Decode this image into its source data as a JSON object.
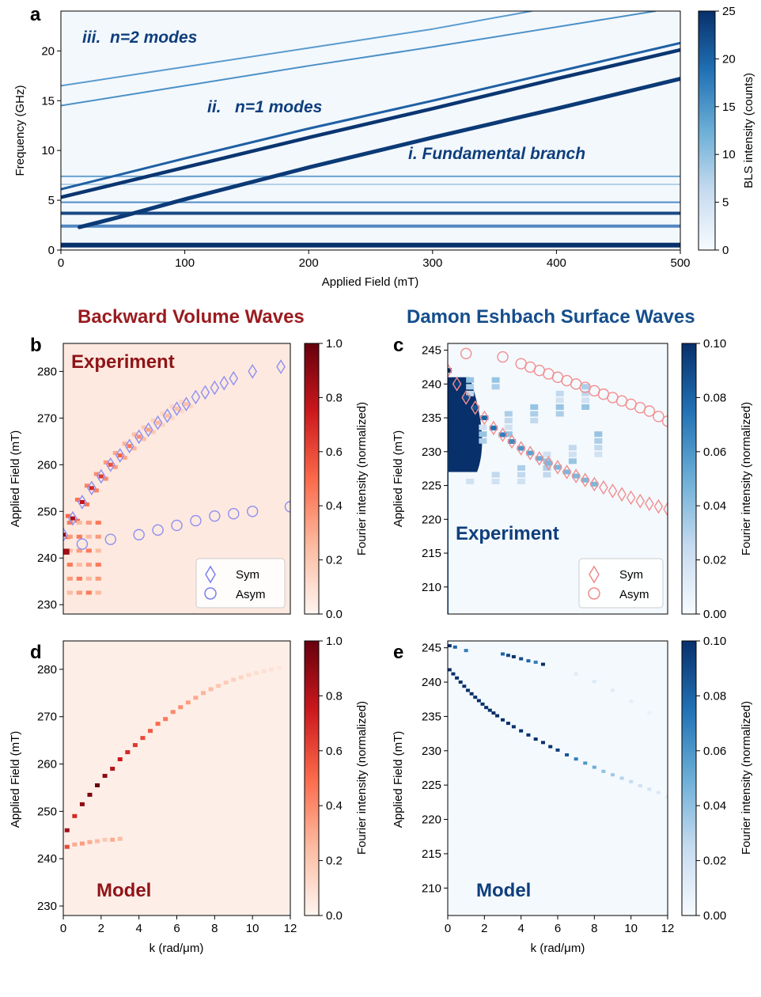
{
  "sections": {
    "left_title": "Backward Volume Waves",
    "right_title": "Damon Eshbach Surface Waves"
  },
  "chart_data": [
    {
      "id": "a",
      "type": "heatmap",
      "panel_letter": "a",
      "xlabel": "Applied Field (mT)",
      "ylabel": "Frequency (GHz)",
      "xlim": [
        0,
        500
      ],
      "ylim": [
        0,
        24
      ],
      "xticks": [
        "0",
        "100",
        "200",
        "300",
        "400",
        "500"
      ],
      "yticks": [
        "0",
        "5",
        "10",
        "15",
        "20"
      ],
      "colorbar": {
        "label": "BLS intensity (counts)",
        "range": [
          0,
          25
        ],
        "ticks": [
          "0",
          "5",
          "10",
          "15",
          "20",
          "25"
        ],
        "colormap": "Blues"
      },
      "annotations": [
        "iii.  n=2 modes",
        "ii.   n=1 modes",
        "i. Fundamental branch"
      ],
      "branches": [
        {
          "name": "fundamental",
          "points": [
            [
              15,
              2.3
            ],
            [
              50,
              3.4
            ],
            [
              100,
              5.1
            ],
            [
              200,
              8.3
            ],
            [
              300,
              11.3
            ],
            [
              400,
              14.2
            ],
            [
              500,
              17.2
            ]
          ]
        },
        {
          "name": "n=1 lower",
          "points": [
            [
              0,
              5.3
            ],
            [
              100,
              8.3
            ],
            [
              200,
              11.3
            ],
            [
              300,
              14.2
            ],
            [
              400,
              17.2
            ],
            [
              500,
              20.1
            ]
          ]
        },
        {
          "name": "n=1 upper",
          "points": [
            [
              0,
              6.1
            ],
            [
              100,
              9.2
            ],
            [
              200,
              12.2
            ],
            [
              300,
              15.0
            ],
            [
              400,
              17.9
            ],
            [
              500,
              20.8
            ]
          ]
        },
        {
          "name": "n=2 lower",
          "points": [
            [
              0,
              14.5
            ],
            [
              100,
              16.5
            ],
            [
              200,
              18.5
            ],
            [
              300,
              20.4
            ],
            [
              380,
              22.0
            ],
            [
              480,
              24.0
            ]
          ]
        },
        {
          "name": "n=2 upper",
          "points": [
            [
              0,
              16.5
            ],
            [
              100,
              18.4
            ],
            [
              200,
              20.3
            ],
            [
              300,
              22.2
            ],
            [
              380,
              24.0
            ]
          ]
        }
      ],
      "horizontal_bands_GHz": [
        0.5,
        2.4,
        3.7,
        4.8,
        6.6,
        7.4
      ]
    },
    {
      "id": "b",
      "type": "heatmap",
      "panel_letter": "b",
      "inset_label": "Experiment",
      "ylabel": "Applied Field (mT)",
      "xlim": [
        0,
        12
      ],
      "ylim": [
        228,
        286
      ],
      "yticks": [
        "230",
        "240",
        "250",
        "260",
        "270",
        "280"
      ],
      "colorbar": {
        "label": "Fourier intensity (normalized)",
        "range": [
          0,
          1
        ],
        "ticks": [
          "0.0",
          "0.2",
          "0.4",
          "0.6",
          "0.8",
          "1.0"
        ],
        "colormap": "Reds"
      },
      "legend": [
        "Sym",
        "Asym"
      ],
      "sym_points": {
        "k": [
          0,
          0.5,
          1,
          1.5,
          2,
          2.5,
          3,
          3.5,
          4,
          4.5,
          5,
          5.5,
          6,
          6.5,
          7,
          7.5,
          8,
          8.5,
          9,
          10,
          11.5
        ],
        "field": [
          245,
          248.5,
          252,
          255,
          257.5,
          260,
          262,
          264,
          266,
          267.5,
          269,
          270.5,
          272,
          273,
          274.5,
          275.5,
          276.5,
          277.5,
          278.5,
          280,
          281
        ]
      },
      "asym_points": {
        "k": [
          1,
          2.5,
          4,
          5,
          6,
          7,
          8,
          9,
          10,
          12
        ],
        "field": [
          243,
          244,
          245,
          246,
          247,
          248,
          249,
          249.5,
          250,
          251
        ]
      }
    },
    {
      "id": "c",
      "type": "heatmap",
      "panel_letter": "c",
      "inset_label": "Experiment",
      "ylabel": "Applied Field (mT)",
      "xlim": [
        0,
        12
      ],
      "ylim": [
        206,
        246
      ],
      "yticks": [
        "210",
        "215",
        "220",
        "225",
        "230",
        "235",
        "240",
        "245"
      ],
      "colorbar": {
        "label": "Fourier intensity (normalized)",
        "range": [
          0,
          0.1
        ],
        "ticks": [
          "0.00",
          "0.02",
          "0.04",
          "0.06",
          "0.08",
          "0.10"
        ],
        "colormap": "Blues"
      },
      "legend": [
        "Sym",
        "Asym"
      ],
      "sym_points": {
        "k": [
          0,
          0.5,
          1,
          1.5,
          2,
          2.5,
          3,
          3.5,
          4,
          4.5,
          5,
          5.5,
          6,
          6.5,
          7,
          7.5,
          8,
          8.5,
          9,
          9.5,
          10,
          10.5,
          11,
          11.5,
          12
        ],
        "field": [
          242,
          240,
          238,
          236.5,
          235,
          233.5,
          232.5,
          231.5,
          230.5,
          229.8,
          229,
          228.3,
          227.7,
          227,
          226.4,
          225.8,
          225.2,
          224.7,
          224.2,
          223.7,
          223.2,
          222.7,
          222.3,
          221.9,
          221.5
        ]
      },
      "asym_points": {
        "k": [
          1,
          3,
          4,
          4.5,
          5,
          5.5,
          6,
          6.5,
          7,
          7.5,
          8,
          8.5,
          9,
          9.5,
          10,
          10.5,
          11,
          11.5,
          12
        ],
        "field": [
          244.5,
          244,
          243,
          242.5,
          242,
          241.5,
          241,
          240.5,
          240,
          239.5,
          239,
          238.5,
          238,
          237.5,
          237,
          236.5,
          236,
          235.2,
          234.5
        ]
      }
    },
    {
      "id": "d",
      "type": "heatmap",
      "panel_letter": "d",
      "inset_label": "Model",
      "xlabel": "k (rad/μm)",
      "ylabel": "Applied Field (mT)",
      "xlim": [
        0,
        12
      ],
      "ylim": [
        228,
        286
      ],
      "xticks": [
        "0",
        "2",
        "4",
        "6",
        "8",
        "10",
        "12"
      ],
      "yticks": [
        "230",
        "240",
        "250",
        "260",
        "270",
        "280"
      ],
      "colorbar": {
        "label": "Fourier intensity (normalized)",
        "range": [
          0,
          1
        ],
        "ticks": [
          "0.0",
          "0.2",
          "0.4",
          "0.6",
          "0.8",
          "1.0"
        ],
        "colormap": "Reds"
      },
      "main_branch": {
        "k": [
          0.2,
          0.6,
          1,
          1.4,
          1.8,
          2.2,
          2.6,
          3,
          3.4,
          3.8,
          4.2,
          4.6,
          5,
          5.4,
          5.8,
          6.2,
          6.6,
          7,
          7.4,
          7.8,
          8.2,
          8.6,
          9,
          9.4,
          9.8,
          10.2,
          10.6,
          11,
          11.4
        ],
        "field": [
          246,
          249,
          251.5,
          253.5,
          255.5,
          257.5,
          259,
          261,
          262.5,
          264,
          265.5,
          267,
          268.5,
          269.5,
          271,
          272,
          273,
          274,
          275,
          275.8,
          276.5,
          277.2,
          277.8,
          278.3,
          278.8,
          279.2,
          279.6,
          280,
          280.3
        ],
        "intensity": [
          0.85,
          0.7,
          0.9,
          0.95,
          1.0,
          0.9,
          0.8,
          0.75,
          0.7,
          0.65,
          0.6,
          0.55,
          0.5,
          0.45,
          0.4,
          0.38,
          0.34,
          0.3,
          0.27,
          0.24,
          0.2,
          0.18,
          0.16,
          0.14,
          0.12,
          0.1,
          0.09,
          0.08,
          0.07
        ]
      },
      "lower_branch": {
        "k": [
          0.2,
          0.6,
          1.0,
          1.4,
          1.8,
          2.2,
          2.6,
          3.0
        ],
        "field": [
          242.5,
          243,
          243.2,
          243.5,
          243.7,
          244,
          244,
          244.2
        ],
        "intensity": [
          0.6,
          0.3,
          0.35,
          0.3,
          0.25,
          0.2,
          0.3,
          0.25
        ]
      }
    },
    {
      "id": "e",
      "type": "heatmap",
      "panel_letter": "e",
      "inset_label": "Model",
      "xlabel": "k (rad/μm)",
      "ylabel": "Applied Field (mT)",
      "xlim": [
        0,
        12
      ],
      "ylim": [
        206,
        246
      ],
      "xticks": [
        "0",
        "2",
        "4",
        "6",
        "8",
        "10",
        "12"
      ],
      "yticks": [
        "210",
        "215",
        "220",
        "225",
        "230",
        "235",
        "240",
        "245"
      ],
      "colorbar": {
        "label": "Fourier intensity (normalized)",
        "range": [
          0,
          0.1
        ],
        "ticks": [
          "0.00",
          "0.02",
          "0.04",
          "0.06",
          "0.08",
          "0.10"
        ],
        "colormap": "Blues"
      },
      "main_branch": {
        "k": [
          0.1,
          0.3,
          0.5,
          0.7,
          0.9,
          1.1,
          1.3,
          1.5,
          1.7,
          1.9,
          2.1,
          2.3,
          2.5,
          2.7,
          3.0,
          3.3,
          3.6,
          4.0,
          4.4,
          4.8,
          5.2,
          5.6,
          6.0,
          6.5,
          7.0,
          7.5,
          8.0,
          8.5,
          9.0,
          9.5,
          10.0,
          10.5,
          11.0,
          11.5,
          12.0
        ],
        "field": [
          241.8,
          241.2,
          240.6,
          240,
          239.4,
          238.8,
          238.3,
          237.8,
          237.3,
          236.8,
          236.3,
          235.9,
          235.5,
          235.1,
          234.5,
          234,
          233.5,
          232.9,
          232.3,
          231.7,
          231.2,
          230.6,
          230.1,
          229.4,
          228.8,
          228.2,
          227.6,
          227.0,
          226.5,
          226,
          225.5,
          224.9,
          224.4,
          223.9,
          223.3
        ],
        "intensity": [
          0.1,
          0.1,
          0.1,
          0.1,
          0.1,
          0.1,
          0.1,
          0.1,
          0.1,
          0.1,
          0.1,
          0.1,
          0.1,
          0.1,
          0.1,
          0.1,
          0.1,
          0.1,
          0.1,
          0.1,
          0.1,
          0.1,
          0.095,
          0.085,
          0.07,
          0.06,
          0.05,
          0.04,
          0.035,
          0.03,
          0.025,
          0.02,
          0.018,
          0.015,
          0.012
        ]
      },
      "upper_branch": {
        "k": [
          0.1,
          0.4,
          1.0,
          3.0,
          3.3,
          3.6,
          4.0,
          4.4,
          4.8,
          5.2,
          7.0,
          8.0,
          9.0,
          10.0,
          11.0
        ],
        "field": [
          245.3,
          245.1,
          244.6,
          244.1,
          243.9,
          243.7,
          243.4,
          243.1,
          242.9,
          242.6,
          241.2,
          240.1,
          238.8,
          237.2,
          235.5
        ],
        "intensity": [
          0.1,
          0.08,
          0.07,
          0.08,
          0.09,
          0.1,
          0.09,
          0.08,
          0.07,
          0.1,
          0.012,
          0.014,
          0.012,
          0.01,
          0.008
        ]
      }
    }
  ]
}
